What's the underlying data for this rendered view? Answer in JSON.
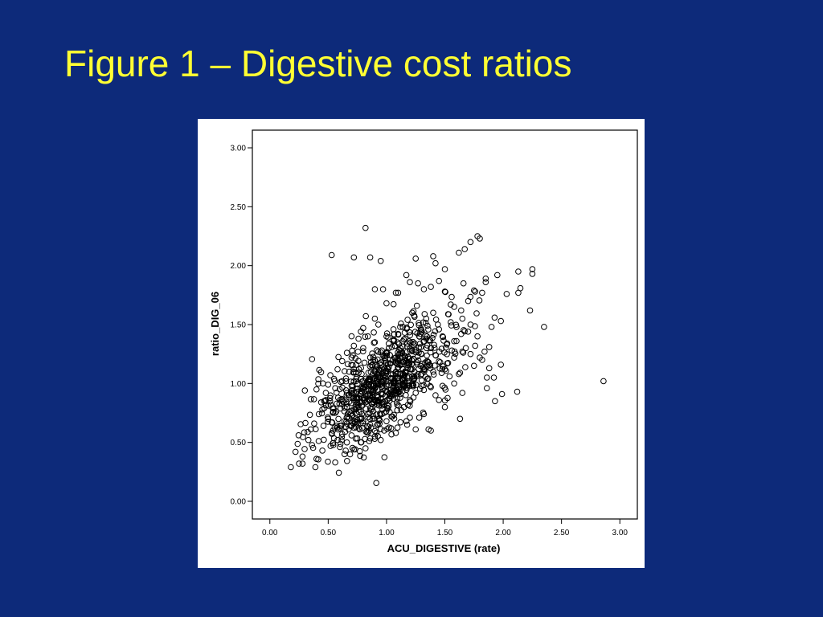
{
  "slide": {
    "title": "Figure 1 – Digestive cost ratios",
    "background_color": "#0d2a7a",
    "title_color": "#ffff33"
  },
  "chart_data": {
    "type": "scatter",
    "title": "",
    "xlabel": "ACU_DIGESTIVE  (rate)",
    "ylabel": "ratio_DIG_06",
    "xlim": [
      -0.15,
      3.15
    ],
    "ylim": [
      -0.15,
      3.15
    ],
    "x_ticks": [
      "0.00",
      "0.50",
      "1.00",
      "1.50",
      "2.00",
      "2.50",
      "3.00"
    ],
    "y_ticks": [
      "0.00",
      "0.50",
      "1.00",
      "1.50",
      "2.00",
      "2.50",
      "3.00"
    ],
    "grid": false,
    "marker": "open-circle",
    "series": [
      {
        "points": [
          [
            0.82,
            2.32
          ],
          [
            0.53,
            2.09
          ],
          [
            0.72,
            2.07
          ],
          [
            0.86,
            2.07
          ],
          [
            0.95,
            2.04
          ],
          [
            1.25,
            2.06
          ],
          [
            1.4,
            2.08
          ],
          [
            1.42,
            2.02
          ],
          [
            1.5,
            1.97
          ],
          [
            1.62,
            2.11
          ],
          [
            1.67,
            2.14
          ],
          [
            1.72,
            2.2
          ],
          [
            1.78,
            2.25
          ],
          [
            1.8,
            2.23
          ],
          [
            1.85,
            1.89
          ],
          [
            1.85,
            1.86
          ],
          [
            1.95,
            1.92
          ],
          [
            2.13,
            1.95
          ],
          [
            2.25,
            1.97
          ],
          [
            2.25,
            1.93
          ],
          [
            2.03,
            1.76
          ],
          [
            2.13,
            1.77
          ],
          [
            2.23,
            1.62
          ],
          [
            2.35,
            1.48
          ],
          [
            1.98,
            1.53
          ],
          [
            1.9,
            1.48
          ],
          [
            1.98,
            1.16
          ],
          [
            1.86,
            0.96
          ],
          [
            1.93,
            0.85
          ],
          [
            1.99,
            0.91
          ],
          [
            2.12,
            0.93
          ],
          [
            2.86,
            1.02
          ],
          [
            1.63,
            0.7
          ],
          [
            1.65,
            0.92
          ],
          [
            1.38,
            0.6
          ],
          [
            1.36,
            0.61
          ],
          [
            0.28,
            0.32
          ],
          [
            0.25,
            0.32
          ],
          [
            0.39,
            0.29
          ],
          [
            0.56,
            0.33
          ],
          [
            0.18,
            0.29
          ],
          [
            0.22,
            0.42
          ],
          [
            0.3,
            0.94
          ],
          [
            0.4,
            0.95
          ],
          [
            0.72,
            1.32
          ],
          [
            0.78,
            1.44
          ],
          [
            0.8,
            1.47
          ],
          [
            0.9,
            1.55
          ],
          [
            0.93,
            1.5
          ],
          [
            1.0,
            1.68
          ],
          [
            0.97,
            1.8
          ],
          [
            0.9,
            1.8
          ],
          [
            1.1,
            1.77
          ],
          [
            1.08,
            1.77
          ],
          [
            1.17,
            1.92
          ],
          [
            1.2,
            1.86
          ],
          [
            1.27,
            1.85
          ],
          [
            1.32,
            1.8
          ],
          [
            1.38,
            1.82
          ],
          [
            1.45,
            1.87
          ],
          [
            1.5,
            1.78
          ],
          [
            1.55,
            1.67
          ],
          [
            1.58,
            1.65
          ],
          [
            1.64,
            1.62
          ],
          [
            1.7,
            1.7
          ],
          [
            1.75,
            1.79
          ],
          [
            1.76,
            1.78
          ],
          [
            1.82,
            1.77
          ],
          [
            1.66,
            1.85
          ],
          [
            1.72,
            1.5
          ],
          [
            1.78,
            1.4
          ],
          [
            1.84,
            1.27
          ],
          [
            1.88,
            1.31
          ],
          [
            1.92,
            1.05
          ],
          [
            1.86,
            1.05
          ],
          [
            1.82,
            1.2
          ],
          [
            1.88,
            1.13
          ],
          [
            1.62,
            1.08
          ],
          [
            1.58,
            1.22
          ],
          [
            1.52,
            1.17
          ],
          [
            1.48,
            0.98
          ],
          [
            1.45,
            0.86
          ],
          [
            1.5,
            0.8
          ],
          [
            1.42,
            0.9
          ],
          [
            1.32,
            0.74
          ],
          [
            1.28,
            0.71
          ],
          [
            1.2,
            0.71
          ],
          [
            1.12,
            0.67
          ],
          [
            1.25,
            0.61
          ],
          [
            0.62,
            0.57
          ],
          [
            0.58,
            0.52
          ],
          [
            0.52,
            0.47
          ],
          [
            0.45,
            0.43
          ],
          [
            0.4,
            0.36
          ],
          [
            0.33,
            0.52
          ],
          [
            0.28,
            0.38
          ],
          [
            0.35,
            0.61
          ],
          [
            0.38,
            0.66
          ],
          [
            0.42,
            0.74
          ],
          [
            0.44,
            0.84
          ],
          [
            0.48,
            0.92
          ],
          [
            0.5,
            0.99
          ],
          [
            0.55,
            1.04
          ],
          [
            0.58,
            1.12
          ],
          [
            0.62,
            1.19
          ],
          [
            0.66,
            1.26
          ],
          [
            0.7,
            1.22
          ],
          [
            0.74,
            1.16
          ],
          [
            0.76,
            1.09
          ],
          [
            0.8,
            1.02
          ],
          [
            0.84,
            0.95
          ],
          [
            0.88,
            0.88
          ],
          [
            0.92,
            0.82
          ],
          [
            0.96,
            0.74
          ],
          [
            1.0,
            0.68
          ],
          [
            1.04,
            0.62
          ],
          [
            1.08,
            0.58
          ],
          [
            0.68,
            0.71
          ],
          [
            0.72,
            0.78
          ],
          [
            0.75,
            0.84
          ],
          [
            0.78,
            0.91
          ],
          [
            0.82,
            0.97
          ],
          [
            0.86,
            1.04
          ],
          [
            0.9,
            1.1
          ],
          [
            0.94,
            1.17
          ],
          [
            0.98,
            1.23
          ],
          [
            1.02,
            1.3
          ],
          [
            1.06,
            1.36
          ],
          [
            1.1,
            1.42
          ],
          [
            1.14,
            1.48
          ],
          [
            1.18,
            1.54
          ],
          [
            1.22,
            1.6
          ],
          [
            1.26,
            1.66
          ],
          [
            1.3,
            1.45
          ],
          [
            1.34,
            1.38
          ],
          [
            1.38,
            1.3
          ],
          [
            1.42,
            1.24
          ],
          [
            1.46,
            1.18
          ],
          [
            1.5,
            1.12
          ],
          [
            1.54,
            1.06
          ],
          [
            1.58,
            1.0
          ],
          [
            1.34,
            1.55
          ],
          [
            1.4,
            1.6
          ],
          [
            1.44,
            1.5
          ],
          [
            1.48,
            1.4
          ],
          [
            1.52,
            1.34
          ],
          [
            1.56,
            1.28
          ],
          [
            1.6,
            1.36
          ],
          [
            1.64,
            1.42
          ],
          [
            1.68,
            1.3
          ],
          [
            1.72,
            1.25
          ],
          [
            1.76,
            1.32
          ],
          [
            1.8,
            1.22
          ],
          [
            1.3,
            1.25
          ],
          [
            1.26,
            1.18
          ],
          [
            1.22,
            1.12
          ],
          [
            1.18,
            1.05
          ],
          [
            1.14,
            0.99
          ],
          [
            1.1,
            0.93
          ],
          [
            1.06,
            0.87
          ],
          [
            1.02,
            0.81
          ],
          [
            0.98,
            0.75
          ],
          [
            0.6,
            0.62
          ],
          [
            0.64,
            0.68
          ],
          [
            0.56,
            0.75
          ],
          [
            0.52,
            0.82
          ],
          [
            0.6,
            0.86
          ],
          [
            0.66,
            0.92
          ],
          [
            0.7,
            0.98
          ],
          [
            0.74,
            1.04
          ],
          [
            0.68,
            1.1
          ],
          [
            0.62,
            1.02
          ],
          [
            0.56,
            0.96
          ],
          [
            0.5,
            0.7
          ],
          [
            0.46,
            0.64
          ],
          [
            0.54,
            0.6
          ],
          [
            0.66,
            0.5
          ],
          [
            0.7,
            0.56
          ],
          [
            0.76,
            0.62
          ],
          [
            0.8,
            0.68
          ],
          [
            0.84,
            0.74
          ],
          [
            0.88,
            0.8
          ],
          [
            0.92,
            0.86
          ],
          [
            0.96,
            0.92
          ],
          [
            1.0,
            0.98
          ],
          [
            1.04,
            1.04
          ],
          [
            1.08,
            1.1
          ],
          [
            1.12,
            1.16
          ],
          [
            1.16,
            1.22
          ],
          [
            1.2,
            1.28
          ],
          [
            1.24,
            1.34
          ],
          [
            1.28,
            1.4
          ],
          [
            0.85,
            0.6
          ],
          [
            0.9,
            0.55
          ],
          [
            0.95,
            0.52
          ],
          [
            0.78,
            0.5
          ],
          [
            0.82,
            0.45
          ],
          [
            1.05,
            0.72
          ],
          [
            1.15,
            0.8
          ],
          [
            1.2,
            0.86
          ],
          [
            1.25,
            0.92
          ],
          [
            1.3,
            0.98
          ],
          [
            1.35,
            1.04
          ],
          [
            1.4,
            1.1
          ],
          [
            1.45,
            1.46
          ],
          [
            1.55,
            1.52
          ],
          [
            1.6,
            1.48
          ],
          [
            1.65,
            1.55
          ],
          [
            1.7,
            1.44
          ],
          [
            1.75,
            1.15
          ],
          [
            0.86,
            1.22
          ],
          [
            0.8,
            1.3
          ],
          [
            0.76,
            1.38
          ],
          [
            0.84,
            1.4
          ],
          [
            0.9,
            1.35
          ],
          [
            0.96,
            1.28
          ],
          [
            1.0,
            1.4
          ],
          [
            1.06,
            1.46
          ],
          [
            1.12,
            1.3
          ],
          [
            1.16,
            1.38
          ],
          [
            0.72,
            0.88
          ],
          [
            0.66,
            0.8
          ],
          [
            0.64,
            0.4
          ],
          [
            0.72,
            0.44
          ],
          [
            0.6,
            0.46
          ],
          [
            0.88,
            0.7
          ],
          [
            0.94,
            0.66
          ],
          [
            0.98,
            0.6
          ],
          [
            1.1,
            1.05
          ],
          [
            1.14,
            1.12
          ],
          [
            1.22,
            1.0
          ],
          [
            1.26,
            1.06
          ],
          [
            1.32,
            1.12
          ],
          [
            1.36,
            1.18
          ],
          [
            0.92,
            1.0
          ],
          [
            0.86,
            0.9
          ],
          [
            0.82,
            0.84
          ],
          [
            0.78,
            0.76
          ],
          [
            0.74,
            0.7
          ],
          [
            0.7,
            0.64
          ]
        ]
      }
    ]
  }
}
